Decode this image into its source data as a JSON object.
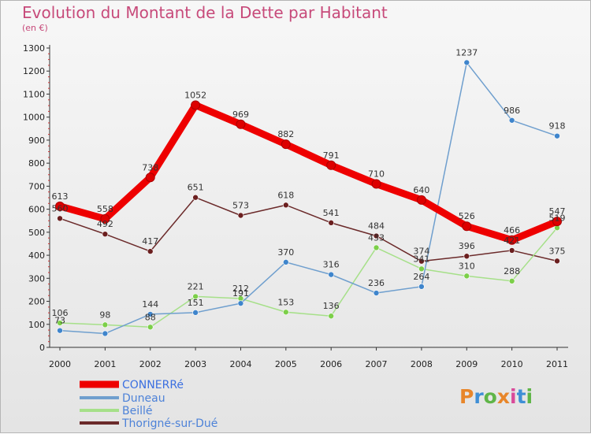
{
  "title": "Evolution du Montant de la Dette par Habitant",
  "subtitle": "(en €)",
  "logo": {
    "text": "Proxiti",
    "letters": [
      "P",
      "r",
      "o",
      "x",
      "i",
      "t",
      "i"
    ],
    "colors": [
      "#e8862a",
      "#3f8fd6",
      "#5fb548",
      "#e8862a",
      "#d94b9a",
      "#3f8fd6",
      "#5fb548"
    ]
  },
  "chart_data": {
    "type": "line",
    "title": "Evolution du Montant de la Dette par Habitant",
    "subtitle": "(en €)",
    "x": [
      "2000",
      "2001",
      "2002",
      "2003",
      "2004",
      "2005",
      "2006",
      "2007",
      "2008",
      "2009",
      "2010",
      "2011"
    ],
    "ylim": [
      0,
      1300
    ],
    "yticks": [
      "0",
      "100",
      "200",
      "300",
      "400",
      "500",
      "600",
      "700",
      "800",
      "900",
      "1000",
      "1100",
      "1200",
      "1300"
    ],
    "grid": false,
    "legend_position": "bottom-left",
    "series": [
      {
        "name": "CONNERRé",
        "color": "#ee0000",
        "marker": "#dd0000",
        "width": 9,
        "label_color": "#ff2222",
        "values": [
          613,
          558,
          738,
          1052,
          969,
          882,
          791,
          710,
          640,
          526,
          466,
          547
        ]
      },
      {
        "name": "Duneau",
        "color": "#6f9fce",
        "marker": "#3f85cc",
        "width": 1.5,
        "label_color": "#5b8fc9",
        "values": [
          73,
          60,
          144,
          151,
          191,
          370,
          316,
          236,
          264,
          1237,
          986,
          918
        ]
      },
      {
        "name": "Beillé",
        "color": "#a6e089",
        "marker": "#7ccf49",
        "width": 1.5,
        "label_color": "#88cc66",
        "values": [
          106,
          98,
          88,
          221,
          212,
          153,
          136,
          433,
          341,
          310,
          288,
          519
        ]
      },
      {
        "name": "Thorigné-sur-Dué",
        "color": "#6b2a2a",
        "marker": "#6b1f1f",
        "width": 1.5,
        "label_color": "#7a3a3a",
        "values": [
          560,
          492,
          417,
          651,
          573,
          618,
          541,
          484,
          374,
          396,
          421,
          375
        ]
      }
    ],
    "labels": {
      "CONNERRé": [
        "613",
        "558",
        "738",
        "1052",
        "969",
        "882",
        "791",
        "710",
        "640",
        "526",
        "466",
        "547"
      ],
      "Duneau": [
        "73",
        "",
        "144",
        "151",
        "191",
        "370",
        "316",
        "236",
        "264",
        "1237",
        "986",
        "918"
      ],
      "Beillé": [
        "106",
        "98",
        "88",
        "221",
        "212",
        "153",
        "136",
        "433",
        "341",
        "310",
        "288",
        "519"
      ],
      "Thorigné-sur-Dué": [
        "560",
        "492",
        "417",
        "651",
        "573",
        "618",
        "541",
        "484",
        "374",
        "396",
        "421",
        "375"
      ]
    }
  }
}
